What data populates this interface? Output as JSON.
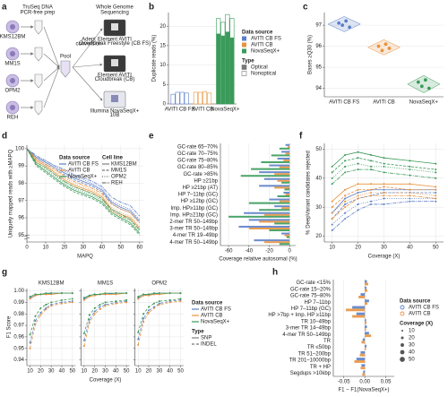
{
  "diagram": {
    "panel": "a",
    "prep_title": [
      "TruSeq DNA",
      "PCR-free prep"
    ],
    "seq_title": [
      "Whole Genome",
      "Sequencing"
    ],
    "cell_lines": [
      "KMS12BM",
      "MM1S",
      "OPM2",
      "REH"
    ],
    "pool": "Pool",
    "adept": [
      "Adept",
      "conversion"
    ],
    "instruments": [
      [
        "Element AVITI",
        "Cloudbreak Freestyle (CB FS)"
      ],
      [
        "Element AVITI",
        "Cloudbreak (CB)"
      ],
      [
        "Illumina NovaSeqX+",
        "10B"
      ]
    ]
  },
  "chart_data": [
    {
      "panel": "b",
      "type": "bar",
      "ylabel": "Duplicate reads (%)",
      "categories": [
        "AVITI CB FS",
        "AVITI CB",
        "NovaSeqX+"
      ],
      "sources_title": "Data source",
      "sources": [
        {
          "name": "AVITI CB FS",
          "color": "#5b7fc7"
        },
        {
          "name": "AVITI CB",
          "color": "#e8923f"
        },
        {
          "name": "NovaSeqX+",
          "color": "#3a9a5a"
        }
      ],
      "types_title": "Type",
      "series": [
        {
          "name": "Optical",
          "values": [
            [
              0,
              0,
              0,
              0
            ],
            [
              0,
              0,
              0,
              0
            ],
            [
              18,
              17.5,
              18.5,
              17
            ]
          ]
        },
        {
          "name": "Nonoptical",
          "values": [
            [
              2.5,
              3,
              3,
              2.8
            ],
            [
              3,
              3,
              3.2,
              2.8
            ],
            [
              4,
              3.5,
              4.5,
              5
            ]
          ]
        }
      ],
      "ylim": [
        0,
        23.5
      ],
      "yticks": [
        0,
        5,
        10,
        15,
        20
      ],
      "grid": true
    },
    {
      "panel": "c",
      "type": "strip",
      "ylabel": "Bases ≥Q30 (%)",
      "categories": [
        "AVITI CB FS",
        "AVITI CB",
        "NovaSeqX+"
      ],
      "colors": [
        "#5b7fc7",
        "#e8923f",
        "#3a9a5a"
      ],
      "values": [
        [
          97.1,
          97.0,
          97.2,
          96.9
        ],
        [
          96.0,
          95.8,
          96.1,
          95.9
        ],
        [
          94.3,
          94.1,
          94.4,
          94.0
        ]
      ],
      "ylim": [
        93.6,
        97.6
      ],
      "yticks": [
        94,
        95,
        96,
        97
      ],
      "grid": true
    },
    {
      "panel": "d",
      "type": "line",
      "xlabel": "MAPQ",
      "ylabel": "Uniquely mapped reads with ≥MAPQ",
      "x": [
        0,
        5,
        10,
        15,
        20,
        25,
        30,
        35,
        40,
        45,
        50,
        55,
        60
      ],
      "xlim": [
        0,
        62
      ],
      "xticks": [
        0,
        10,
        20,
        30,
        40,
        50,
        60
      ],
      "ylim": [
        94.6,
        100.2
      ],
      "yticks": [
        95,
        96,
        97,
        98,
        99,
        100
      ],
      "grid": true,
      "sources_title": "Data source",
      "sources": [
        {
          "name": "AVITI CB FS",
          "color": "#5b7fc7"
        },
        {
          "name": "AVITI CB",
          "color": "#e8923f"
        },
        {
          "name": "NovaSeqX+",
          "color": "#3a9a5a"
        }
      ],
      "lines_title": "Cell line",
      "lines": [
        {
          "name": "KMS12BM",
          "dash": "none"
        },
        {
          "name": "MM1S",
          "dash": "3,1.5"
        },
        {
          "name": "OPM2",
          "dash": "1,1.5"
        },
        {
          "name": "REH",
          "dash": "4,1,1,1"
        }
      ],
      "values": [
        [
          [
            100,
            99.5,
            99.2,
            98.9,
            98.6,
            98.3,
            98.1,
            97.9,
            97.6,
            96.9,
            96.6,
            96.4,
            95.8
          ],
          [
            100,
            99.4,
            99.1,
            98.8,
            98.5,
            98.2,
            98.0,
            97.8,
            97.5,
            96.8,
            96.5,
            96.3,
            95.7
          ],
          [
            100,
            99.5,
            99.3,
            99.0,
            98.7,
            98.4,
            98.2,
            98.0,
            97.7,
            97.0,
            96.7,
            96.5,
            95.9
          ],
          [
            100,
            99.6,
            99.3,
            99.0,
            98.8,
            98.5,
            98.3,
            98.1,
            97.8,
            97.2,
            96.9,
            96.7,
            96.1
          ]
        ],
        [
          [
            100,
            99.3,
            99.0,
            98.6,
            98.2,
            97.9,
            97.7,
            97.5,
            97.2,
            96.5,
            96.2,
            96.0,
            95.4
          ],
          [
            100,
            99.2,
            98.9,
            98.5,
            98.1,
            97.8,
            97.6,
            97.4,
            97.1,
            96.4,
            96.1,
            95.9,
            95.3
          ],
          [
            100,
            99.3,
            99.0,
            98.7,
            98.3,
            98.0,
            97.8,
            97.6,
            97.3,
            96.6,
            96.3,
            96.1,
            95.5
          ],
          [
            100,
            99.4,
            99.1,
            98.8,
            98.4,
            98.1,
            97.9,
            97.7,
            97.4,
            96.8,
            96.5,
            96.3,
            95.7
          ]
        ],
        [
          [
            100,
            99.1,
            98.7,
            98.3,
            97.9,
            97.6,
            97.4,
            97.2,
            96.9,
            96.3,
            96.0,
            95.7,
            95.1
          ],
          [
            100,
            99.0,
            98.6,
            98.2,
            97.8,
            97.5,
            97.3,
            97.1,
            96.8,
            96.2,
            95.9,
            95.6,
            95.0
          ],
          [
            100,
            99.1,
            98.8,
            98.4,
            98.0,
            97.7,
            97.5,
            97.3,
            97.0,
            96.4,
            96.1,
            95.8,
            95.2
          ],
          [
            100,
            99.2,
            98.9,
            98.5,
            98.1,
            97.8,
            97.6,
            97.4,
            97.1,
            96.5,
            96.2,
            95.9,
            95.3
          ]
        ]
      ]
    },
    {
      "panel": "e",
      "type": "bar",
      "orientation": "horizontal",
      "xlabel": "Coverage relative autosomal (%)",
      "categories": [
        "GC-rate 65–70%",
        "GC-rate 70–75%",
        "GC-rate 75–80%",
        "GC-rate 80–85%",
        "GC-rate >85%",
        "HP ≥21bp",
        "HP ≥21bp (AT)",
        "HP 7–11bp (GC)",
        "HP ≥12bp (GC)",
        "Imp. HP≥11bp (GC)",
        "Imp. HP≥21bp (GC)",
        "2-mer TR 50–149bp",
        "3-mer TR 50–149bp",
        "4-mer TR 19–49bp",
        "4-mer TR 50–149bp"
      ],
      "colors": [
        "#5b7fc7",
        "#e8923f",
        "#3a9a5a"
      ],
      "values": [
        [
          -4,
          -2,
          -10
        ],
        [
          -8,
          -4,
          -18
        ],
        [
          -12,
          -6,
          -28
        ],
        [
          -20,
          -10,
          -38
        ],
        [
          -30,
          -15,
          -48
        ],
        [
          -25,
          -12,
          -8
        ],
        [
          -30,
          -15,
          -5
        ],
        [
          -6,
          -4,
          -12
        ],
        [
          -20,
          -10,
          -40
        ],
        [
          -15,
          -8,
          -30
        ],
        [
          -45,
          -25,
          -60
        ],
        [
          -40,
          -30,
          -15
        ],
        [
          -50,
          -40,
          -20
        ],
        [
          -8,
          -5,
          -3
        ],
        [
          -35,
          -25,
          -10
        ]
      ],
      "xlim": [
        -68,
        6
      ],
      "xticks": [
        -60,
        -40,
        -20,
        0
      ],
      "grid": true
    },
    {
      "panel": "f",
      "type": "line",
      "markers": true,
      "xlabel": "Coverage (X)",
      "ylabel": "% DeepVariant candidates rejected",
      "x": [
        10,
        15,
        20,
        25,
        30,
        40,
        50
      ],
      "xlim": [
        7,
        53
      ],
      "xticks": [
        10,
        20,
        30,
        40,
        50
      ],
      "ylim": [
        18,
        52
      ],
      "yticks": [
        20,
        30,
        40,
        50
      ],
      "grid": true,
      "colors": [
        "#5b7fc7",
        "#e8923f",
        "#3a9a5a"
      ],
      "dashes": [
        "none",
        "3,1.5",
        "1,1.5",
        "4,1,1,1"
      ],
      "values": [
        [
          [
            28,
            33,
            35,
            36,
            36,
            36,
            36
          ],
          [
            26,
            31,
            33,
            34,
            35,
            35,
            35
          ],
          [
            24,
            28,
            31,
            32,
            33,
            33,
            33
          ],
          [
            22,
            26,
            29,
            31,
            31,
            32,
            32
          ]
        ],
        [
          [
            32,
            36,
            38,
            38,
            38,
            38,
            37
          ],
          [
            30,
            34,
            36,
            36,
            37,
            36,
            36
          ],
          [
            28,
            32,
            34,
            35,
            35,
            35,
            34
          ],
          [
            26,
            30,
            33,
            34,
            34,
            34,
            33
          ]
        ],
        [
          [
            44,
            48,
            49,
            48,
            47,
            46,
            45
          ],
          [
            42,
            46,
            47,
            46,
            45,
            44,
            43
          ],
          [
            40,
            44,
            45,
            44,
            44,
            43,
            42
          ],
          [
            38,
            42,
            43,
            43,
            42,
            41,
            40
          ]
        ]
      ]
    },
    {
      "panel": "g",
      "type": "line",
      "markers": true,
      "xlabel": "Coverage (X)",
      "ylabel": "F1 Score",
      "x": [
        10,
        15,
        20,
        25,
        30,
        40,
        50
      ],
      "xlim": [
        7,
        53
      ],
      "xticks": [
        10,
        20,
        30,
        40,
        50
      ],
      "ylim": [
        0.935,
        1.002
      ],
      "yticks": [
        0.94,
        0.95,
        0.96,
        0.97,
        0.98,
        0.99,
        {
          "value": 1,
          "label": "1.00"
        }
      ],
      "grid": true,
      "sources_title": "Data source",
      "sources": [
        {
          "name": "AVITI CB FS",
          "color": "#5b7fc7"
        },
        {
          "name": "AVITI CB",
          "color": "#e8923f"
        },
        {
          "name": "NovaSeqX+",
          "color": "#3a9a5a"
        }
      ],
      "types_title": "Type",
      "types": [
        {
          "name": "SNP",
          "dash": "none"
        },
        {
          "name": "INDEL",
          "dash": "3,2"
        }
      ],
      "facets": [
        {
          "title": "KMS12BM",
          "values": [
            [
              [
                0.994,
                0.996,
                0.997,
                0.997,
                0.998,
                0.998,
                0.998
              ],
              [
                0.955,
                0.974,
                0.981,
                0.985,
                0.988,
                0.99,
                0.991
              ]
            ],
            [
              [
                0.993,
                0.996,
                0.997,
                0.997,
                0.997,
                0.998,
                0.998
              ],
              [
                0.95,
                0.971,
                0.979,
                0.984,
                0.987,
                0.989,
                0.99
              ]
            ],
            [
              [
                0.995,
                0.997,
                0.997,
                0.998,
                0.998,
                0.998,
                0.998
              ],
              [
                0.962,
                0.978,
                0.985,
                0.988,
                0.99,
                0.992,
                0.993
              ]
            ]
          ]
        },
        {
          "title": "MM1S",
          "values": [
            [
              [
                0.993,
                0.996,
                0.997,
                0.997,
                0.997,
                0.998,
                0.998
              ],
              [
                0.957,
                0.975,
                0.982,
                0.986,
                0.988,
                0.99,
                0.991
              ]
            ],
            [
              [
                0.992,
                0.995,
                0.996,
                0.997,
                0.997,
                0.997,
                0.998
              ],
              [
                0.952,
                0.972,
                0.98,
                0.984,
                0.987,
                0.989,
                0.99
              ]
            ],
            [
              [
                0.994,
                0.996,
                0.997,
                0.997,
                0.998,
                0.998,
                0.998
              ],
              [
                0.963,
                0.979,
                0.985,
                0.988,
                0.99,
                0.991,
                0.992
              ]
            ]
          ]
        },
        {
          "title": "OPM2",
          "values": [
            [
              [
                0.994,
                0.996,
                0.997,
                0.997,
                0.998,
                0.998,
                0.998
              ],
              [
                0.958,
                0.976,
                0.983,
                0.986,
                0.989,
                0.991,
                0.992
              ]
            ],
            [
              [
                0.993,
                0.996,
                0.996,
                0.997,
                0.997,
                0.998,
                0.998
              ],
              [
                0.953,
                0.973,
                0.981,
                0.985,
                0.988,
                0.99,
                0.991
              ]
            ],
            [
              [
                0.995,
                0.997,
                0.997,
                0.998,
                0.998,
                0.998,
                0.998
              ],
              [
                0.964,
                0.98,
                0.986,
                0.989,
                0.991,
                0.992,
                0.993
              ]
            ]
          ]
        }
      ]
    },
    {
      "panel": "h",
      "type": "bar",
      "orientation": "horizontal",
      "xlabel": "F1 − F1(NovaSeqX+)",
      "categories": [
        "GC-rate <15%",
        "GC-rate 15–20%",
        "GC-rate 75–80%",
        "HP 7–11bp",
        "HP 7–11bp (GC)",
        "HP >7bp + Imp. HP ≥11bp",
        "TR 10–49bp",
        "3-mer TR 14–49bp",
        "4-mer TR 50–149bp",
        "TR",
        "TR ≤50bp",
        "TR 51–200bp",
        "TR 201–10000bp",
        "TR + HP",
        "Segdups >10kbp"
      ],
      "sources_title": "Data source",
      "sources": [
        {
          "name": "AVITI CB FS",
          "color": "#5b7fc7"
        },
        {
          "name": "AVITI CB",
          "color": "#e8923f"
        }
      ],
      "values": [
        [
          0.005,
          0.008
        ],
        [
          0.004,
          0.006
        ],
        [
          -0.01,
          -0.015
        ],
        [
          0.01,
          0.006
        ],
        [
          -0.03,
          -0.045
        ],
        [
          -0.02,
          -0.03
        ],
        [
          0.003,
          0.004
        ],
        [
          0.005,
          0.003
        ],
        [
          0.01,
          0.015
        ],
        [
          -0.005,
          -0.008
        ],
        [
          0.004,
          0.003
        ],
        [
          -0.01,
          -0.012
        ],
        [
          -0.02,
          -0.025
        ],
        [
          -0.008,
          -0.01
        ],
        [
          -0.004,
          -0.006
        ]
      ],
      "xlim": [
        -0.075,
        0.07
      ],
      "xticks": [
        -0.05,
        {
          "value": 0,
          "label": "0.00"
        },
        0.05
      ],
      "grid": true,
      "coverage_title": "Coverage (X)",
      "coverage": [
        10,
        20,
        30,
        40,
        50
      ]
    }
  ]
}
